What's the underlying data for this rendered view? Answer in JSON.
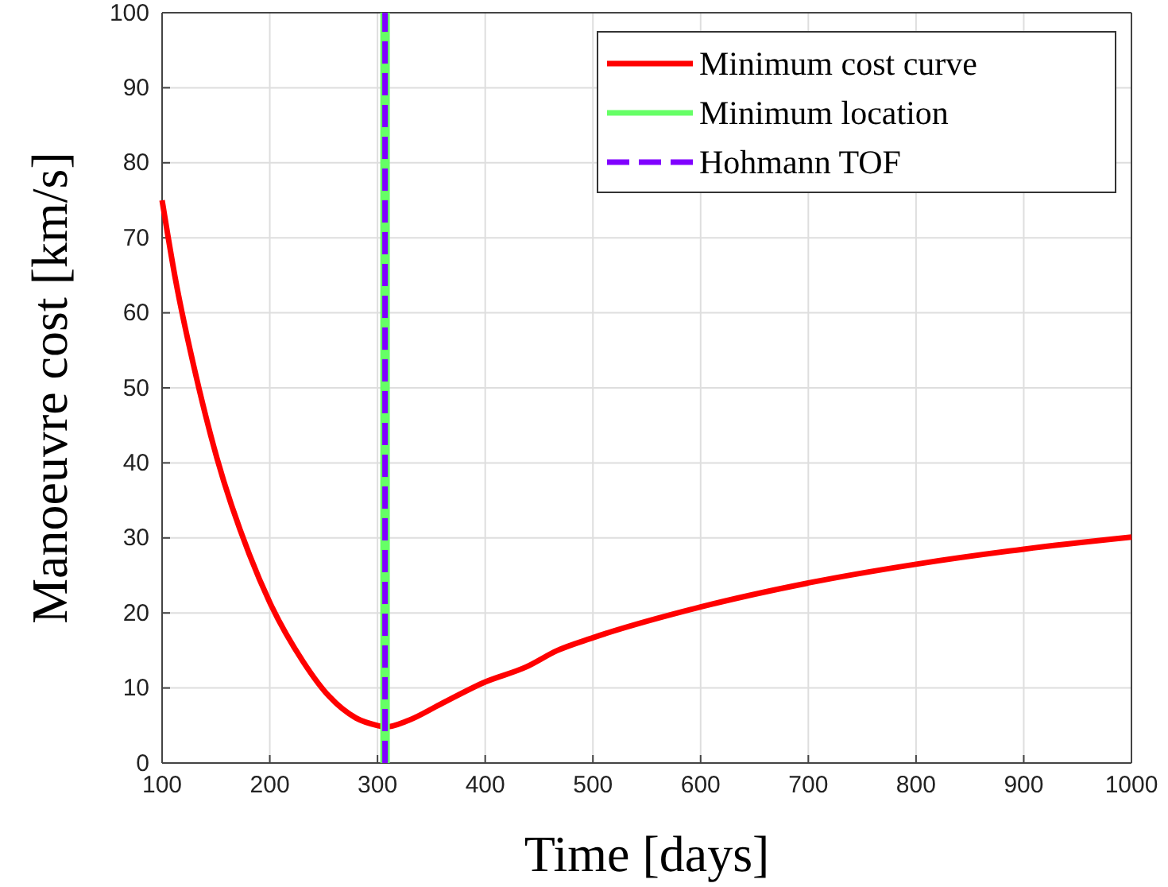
{
  "chart_data": {
    "type": "line",
    "xlabel": "Time [days]",
    "ylabel": "Manoeuvre cost [km/s]",
    "xlim": [
      100,
      1000
    ],
    "xticks": [
      100,
      200,
      300,
      400,
      500,
      600,
      700,
      800,
      900,
      1000
    ],
    "ylim": [
      0,
      100
    ],
    "yticks": [
      0,
      10,
      20,
      30,
      40,
      50,
      60,
      70,
      80,
      90,
      100
    ],
    "grid": true,
    "legend": "top right",
    "line_style": "solid",
    "series": [
      {
        "name": "Minimum cost curve",
        "color": "#ff0000",
        "x": [
          100,
          112,
          132,
          151,
          181,
          200,
          231,
          255,
          280,
          300,
          307,
          329,
          358,
          400,
          438,
          467,
          500,
          600,
          700,
          800,
          900,
          1000
        ],
        "values": [
          75,
          64.8,
          51.3,
          40.6,
          27.8,
          21.4,
          13.5,
          8.9,
          6.0,
          5.0,
          4.8,
          5.7,
          7.8,
          10.8,
          12.8,
          15.0,
          16.7,
          20.8,
          24.0,
          26.5,
          28.5,
          30.1
        ]
      },
      {
        "name": "Minimum location",
        "color": "#66ff66",
        "x": [
          307,
          307
        ],
        "values": [
          0,
          100
        ]
      },
      {
        "name": "Hohmann TOF",
        "color": "#8000ff",
        "x": [
          307,
          307
        ],
        "values": [
          0,
          100
        ],
        "line_style": "dashed"
      }
    ]
  }
}
